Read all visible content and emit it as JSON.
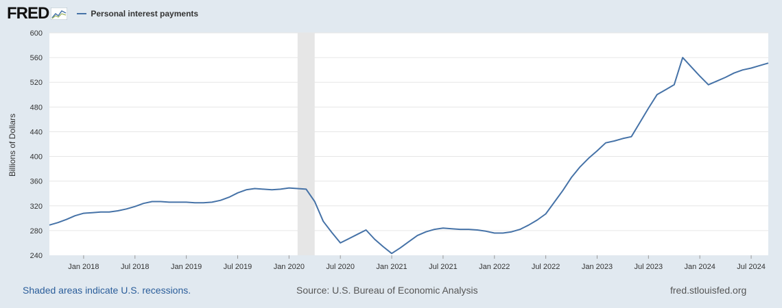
{
  "header": {
    "logo_text": "FRED",
    "legend_label": "Personal interest payments"
  },
  "footer": {
    "recession_note": "Shaded areas indicate U.S. recessions.",
    "source": "Source: U.S. Bureau of Economic Analysis",
    "site": "fred.stlouisfed.org"
  },
  "colors": {
    "series": "#4572a7",
    "background": "#e1e9f0",
    "plot": "#ffffff",
    "recession": "#e6e6e6"
  },
  "chart_data": {
    "type": "line",
    "ylabel": "Billions of Dollars",
    "ylim": [
      240,
      600
    ],
    "yticks": [
      240,
      280,
      320,
      360,
      400,
      440,
      480,
      520,
      560,
      600
    ],
    "xlim": [
      "2017-09",
      "2024-09"
    ],
    "xticks": [
      {
        "date": "2018-01",
        "label": "Jan 2018"
      },
      {
        "date": "2018-07",
        "label": "Jul 2018"
      },
      {
        "date": "2019-01",
        "label": "Jan 2019"
      },
      {
        "date": "2019-07",
        "label": "Jul 2019"
      },
      {
        "date": "2020-01",
        "label": "Jan 2020"
      },
      {
        "date": "2020-07",
        "label": "Jul 2020"
      },
      {
        "date": "2021-01",
        "label": "Jan 2021"
      },
      {
        "date": "2021-07",
        "label": "Jul 2021"
      },
      {
        "date": "2022-01",
        "label": "Jan 2022"
      },
      {
        "date": "2022-07",
        "label": "Jul 2022"
      },
      {
        "date": "2023-01",
        "label": "Jan 2023"
      },
      {
        "date": "2023-07",
        "label": "Jul 2023"
      },
      {
        "date": "2024-01",
        "label": "Jan 2024"
      },
      {
        "date": "2024-07",
        "label": "Jul 2024"
      }
    ],
    "recessions": [
      {
        "start": "2020-02",
        "end": "2020-04"
      }
    ],
    "grid": true,
    "series": [
      {
        "name": "Personal interest payments",
        "x": [
          "2017-09",
          "2017-10",
          "2017-11",
          "2017-12",
          "2018-01",
          "2018-02",
          "2018-03",
          "2018-04",
          "2018-05",
          "2018-06",
          "2018-07",
          "2018-08",
          "2018-09",
          "2018-10",
          "2018-11",
          "2018-12",
          "2019-01",
          "2019-02",
          "2019-03",
          "2019-04",
          "2019-05",
          "2019-06",
          "2019-07",
          "2019-08",
          "2019-09",
          "2019-10",
          "2019-11",
          "2019-12",
          "2020-01",
          "2020-02",
          "2020-03",
          "2020-04",
          "2020-05",
          "2020-06",
          "2020-07",
          "2020-08",
          "2020-09",
          "2020-10",
          "2020-11",
          "2020-12",
          "2021-01",
          "2021-02",
          "2021-03",
          "2021-04",
          "2021-05",
          "2021-06",
          "2021-07",
          "2021-08",
          "2021-09",
          "2021-10",
          "2021-11",
          "2021-12",
          "2022-01",
          "2022-02",
          "2022-03",
          "2022-04",
          "2022-05",
          "2022-06",
          "2022-07",
          "2022-08",
          "2022-09",
          "2022-10",
          "2022-11",
          "2022-12",
          "2023-01",
          "2023-02",
          "2023-03",
          "2023-04",
          "2023-05",
          "2023-06",
          "2023-07",
          "2023-08",
          "2023-09",
          "2023-10",
          "2023-11",
          "2023-12",
          "2024-01",
          "2024-02",
          "2024-03",
          "2024-04",
          "2024-05",
          "2024-06",
          "2024-07",
          "2024-08",
          "2024-09"
        ],
        "values": [
          289,
          293,
          298,
          304,
          308,
          309,
          310,
          310,
          312,
          315,
          319,
          324,
          327,
          327,
          326,
          326,
          326,
          325,
          325,
          326,
          329,
          334,
          341,
          346,
          348,
          347,
          346,
          347,
          349,
          348,
          347,
          327,
          295,
          277,
          260,
          267,
          274,
          281,
          266,
          254,
          243,
          252,
          262,
          272,
          278,
          282,
          284,
          283,
          282,
          282,
          281,
          279,
          276,
          276,
          278,
          282,
          289,
          297,
          307,
          326,
          345,
          366,
          383,
          397,
          409,
          422,
          425,
          429,
          432,
          455,
          478,
          500,
          508,
          516,
          560,
          545,
          530,
          516,
          522,
          528,
          535,
          540,
          543,
          547,
          551
        ]
      }
    ]
  }
}
